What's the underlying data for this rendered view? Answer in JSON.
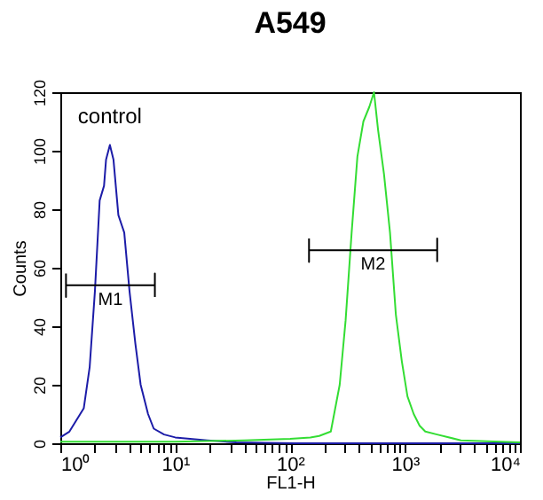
{
  "chart_data": {
    "type": "line",
    "title": "A549",
    "xlabel": "FL1-H",
    "ylabel": "Counts",
    "log": "x",
    "xlim": [
      1,
      10000
    ],
    "ylim": [
      0,
      120
    ],
    "xticks": [
      {
        "value": 1,
        "label": "10⁰"
      },
      {
        "value": 2,
        "label": null
      },
      {
        "value": 3,
        "label": null
      },
      {
        "value": 4,
        "label": null
      },
      {
        "value": 5,
        "label": null
      },
      {
        "value": 6,
        "label": null
      },
      {
        "value": 7,
        "label": null
      },
      {
        "value": 8,
        "label": null
      },
      {
        "value": 9,
        "label": null
      },
      {
        "value": 10,
        "label": "10¹"
      },
      {
        "value": 20,
        "label": null
      },
      {
        "value": 30,
        "label": null
      },
      {
        "value": 40,
        "label": null
      },
      {
        "value": 50,
        "label": null
      },
      {
        "value": 60,
        "label": null
      },
      {
        "value": 70,
        "label": null
      },
      {
        "value": 80,
        "label": null
      },
      {
        "value": 90,
        "label": null
      },
      {
        "value": 100,
        "label": "10²"
      },
      {
        "value": 200,
        "label": null
      },
      {
        "value": 300,
        "label": null
      },
      {
        "value": 400,
        "label": null
      },
      {
        "value": 500,
        "label": null
      },
      {
        "value": 600,
        "label": null
      },
      {
        "value": 700,
        "label": null
      },
      {
        "value": 800,
        "label": null
      },
      {
        "value": 900,
        "label": null
      },
      {
        "value": 1000,
        "label": "10³"
      },
      {
        "value": 2000,
        "label": null
      },
      {
        "value": 3000,
        "label": null
      },
      {
        "value": 4000,
        "label": null
      },
      {
        "value": 5000,
        "label": null
      },
      {
        "value": 6000,
        "label": null
      },
      {
        "value": 7000,
        "label": null
      },
      {
        "value": 8000,
        "label": null
      },
      {
        "value": 9000,
        "label": null
      },
      {
        "value": 10000,
        "label": "10⁴"
      }
    ],
    "yticks": [
      0,
      20,
      40,
      60,
      80,
      100,
      120
    ],
    "grid": false,
    "series": [
      {
        "name": "control",
        "color": "#1c1ca8",
        "x": [
          1,
          1.2,
          1.6,
          1.8,
          2,
          2.2,
          2.4,
          2.5,
          2.7,
          2.9,
          3.2,
          3.6,
          4,
          4.5,
          5,
          5.8,
          6.5,
          8,
          10,
          19,
          34,
          110,
          1000,
          10000
        ],
        "values": [
          2,
          4,
          12,
          26,
          52,
          83,
          88,
          97,
          102,
          97,
          78,
          72,
          52,
          34,
          20,
          10,
          5,
          3,
          2,
          1,
          0.3,
          0,
          0,
          0
        ]
      },
      {
        "color": "#33dd33",
        "x": [
          1,
          10,
          40,
          100,
          150,
          179,
          226,
          270,
          304,
          343,
          385,
          434,
          489,
          537,
          583,
          656,
          740,
          832,
          938,
          1050,
          1190,
          1340,
          1500,
          1900,
          3060,
          10000
        ],
        "values": [
          0.5,
          0.5,
          1,
          1.5,
          2,
          2.5,
          4,
          20,
          42,
          72,
          98,
          110,
          115,
          120,
          107,
          92,
          72,
          44,
          28,
          16,
          10,
          6,
          4,
          3,
          1,
          0.3
        ]
      },
      {
        "type": "line",
        "name": "M1",
        "color": "#000000",
        "x": [
          1.12,
          1.12,
          1.12,
          6.65,
          6.65,
          6.65
        ],
        "values": [
          58,
          50,
          54,
          54,
          58,
          50
        ]
      },
      {
        "type": "line",
        "name": "M2",
        "color": "#000000",
        "x": [
          146,
          146,
          146,
          1905,
          1905,
          1905
        ],
        "values": [
          70,
          62,
          66,
          66,
          70,
          62
        ]
      }
    ]
  }
}
